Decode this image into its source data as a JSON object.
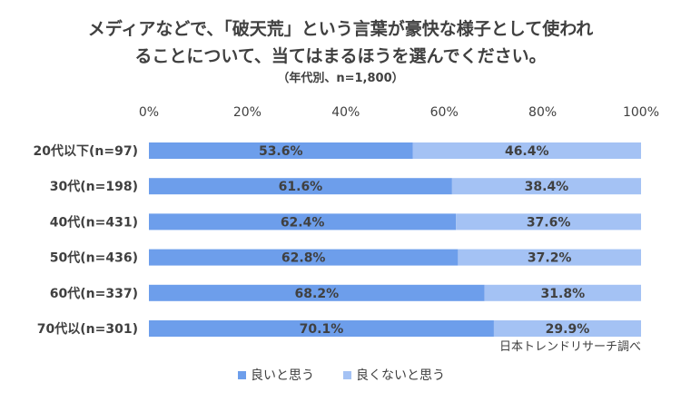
{
  "chart_data": {
    "type": "bar",
    "stacked": true,
    "orientation": "horizontal",
    "title_lines": [
      "メディアなどで、「破天荒」という言葉が豪快な様子として使われ",
      "ることについて、当てはまるほうを選んでください。"
    ],
    "subtitle": "（年代別、n=1,800）",
    "categories": [
      "20代以下(n=97)",
      "30代(n=198)",
      "40代(n=431)",
      "50代(n=436)",
      "60代(n=337)",
      "70代以(n=301)"
    ],
    "series": [
      {
        "name": "良いと思う",
        "color": "#6d9eeb",
        "values": [
          53.6,
          61.6,
          62.4,
          62.8,
          68.2,
          70.1
        ],
        "labels": [
          "53.6%",
          "61.6%",
          "62.4%",
          "62.8%",
          "68.2%",
          "70.1%"
        ]
      },
      {
        "name": "良くないと思う",
        "color": "#a4c2f4",
        "values": [
          46.4,
          38.4,
          37.6,
          37.2,
          31.8,
          29.9
        ],
        "labels": [
          "46.4%",
          "38.4%",
          "37.6%",
          "37.2%",
          "31.8%",
          "29.9%"
        ]
      }
    ],
    "x_ticks": [
      "0%",
      "20%",
      "40%",
      "60%",
      "80%",
      "100%"
    ],
    "xlim": [
      0,
      100
    ],
    "legend_position": "bottom",
    "source_note": "日本トレンドリサーチ調べ"
  }
}
